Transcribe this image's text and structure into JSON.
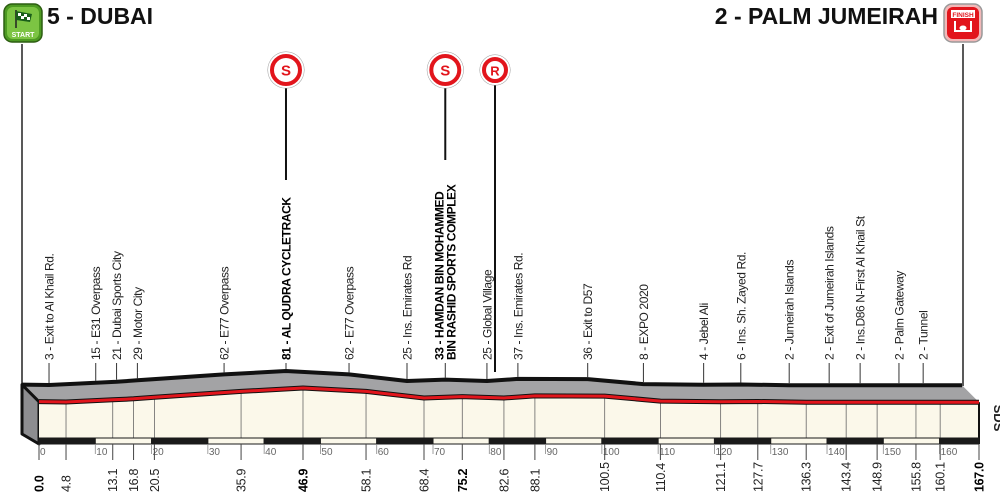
{
  "header": {
    "start_label": "5 -  DUBAI",
    "finish_label": "2 - PALM JUMEIRAH",
    "start_icon_text": "START",
    "finish_icon_text": "FINISH"
  },
  "markers": [
    {
      "letter": "S",
      "km": 46.9,
      "type": "sprint"
    },
    {
      "letter": "S",
      "km": 75.2,
      "type": "sprint"
    },
    {
      "letter": "R",
      "type": "feed-zone"
    }
  ],
  "waypoints": [
    {
      "km": "0.0",
      "elev": 5,
      "label": "",
      "bold": true
    },
    {
      "km": "4.8",
      "elev": 3,
      "label": "3 - Exit to Al Khail Rd."
    },
    {
      "km": "13.1",
      "elev": 15,
      "label": "15 - E31 Overpass"
    },
    {
      "km": "16.8",
      "elev": 21,
      "label": "21 - Dubai Sports City"
    },
    {
      "km": "20.5",
      "elev": 29,
      "label": "29 - Motor City"
    },
    {
      "km": "35.9",
      "elev": 62,
      "label": "62 - E77 Overpass"
    },
    {
      "km": "46.9",
      "elev": 81,
      "label": "81 - AL QUDRA CYCLETRACK",
      "bold": true
    },
    {
      "km": "58.1",
      "elev": 62,
      "label": "62 - E77 Overpass"
    },
    {
      "km": "68.4",
      "elev": 25,
      "label": "25 - Ins. Emirates Rd"
    },
    {
      "km": "75.2",
      "elev": 33,
      "label": "33 - HAMDAN BIN MOHAMMED",
      "label2": "BIN RASHID SPORTS COMPLEX",
      "bold": true
    },
    {
      "km": "82.6",
      "elev": 25,
      "label": "25 - Global Village"
    },
    {
      "km": "88.1",
      "elev": 37,
      "label": "37 - Ins. Emirates Rd."
    },
    {
      "km": "100.5",
      "elev": 36,
      "label": "36 - Exit to D57"
    },
    {
      "km": "110.4",
      "elev": 8,
      "label": "8 - EXPO 2020"
    },
    {
      "km": "121.1",
      "elev": 4,
      "label": "4 - Jebel Ali"
    },
    {
      "km": "127.7",
      "elev": 6,
      "label": "6 - Ins. Sh. Zayed Rd."
    },
    {
      "km": "136.3",
      "elev": 2,
      "label": "2 - Jumeirah Islands"
    },
    {
      "km": "143.4",
      "elev": 2,
      "label": "2 - Exit of Jumeirah Islands"
    },
    {
      "km": "148.9",
      "elev": 2,
      "label": "2 - Ins.D86 N-First Al Khail St"
    },
    {
      "km": "155.8",
      "elev": 2,
      "label": "2 - Palm Gateway"
    },
    {
      "km": "160.1",
      "elev": 2,
      "label": "2 - Tunnel"
    },
    {
      "km": "167.0",
      "elev": 2,
      "label": "",
      "bold": true
    }
  ],
  "axis": {
    "km_ticks": [
      "0",
      "10",
      "20",
      "30",
      "40",
      "50",
      "60",
      "70",
      "80",
      "90",
      "100",
      "110",
      "120",
      "130",
      "140",
      "150",
      "160"
    ],
    "total_km": 167.0
  },
  "logo": "SDS",
  "colors": {
    "route": "#e2151c",
    "surface": "#a3a3a5",
    "front": "#fbf8ea",
    "start_icon": "#5fae2e",
    "finish_icon": "#e2151c"
  }
}
